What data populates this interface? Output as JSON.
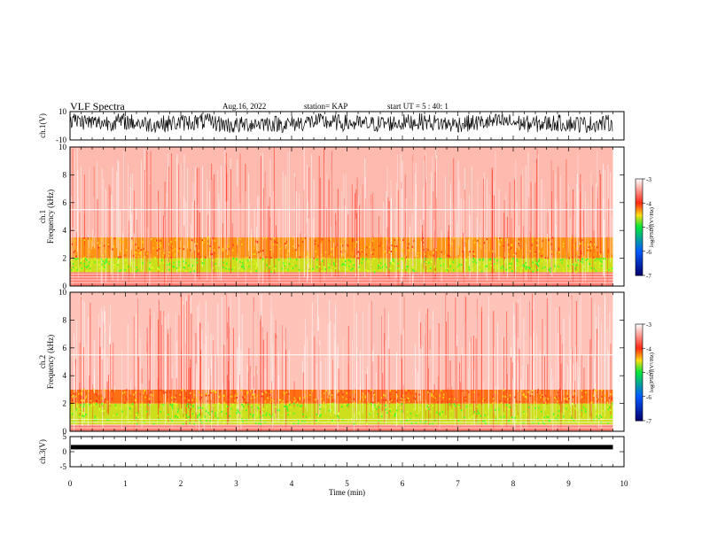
{
  "header": {
    "title": "VLF Spectra",
    "date": "Aug.16, 2022",
    "station": "station= KAP",
    "start": "start  UT  =   5 : 40: 1"
  },
  "colors": {
    "spectrum_low": "#ff3a1e",
    "spectrum_mid": "#ffd21a",
    "spectrum_high": "#3cff2a",
    "trace": "#000000"
  },
  "chart_data": [
    {
      "type": "line",
      "panel": "ch1-waveform",
      "ylabel": "ch.1(V)",
      "ylim": [
        -10,
        10
      ],
      "yticks": [
        "10",
        "-10"
      ],
      "xlim": [
        0,
        10
      ],
      "x": [
        0,
        0.5,
        1,
        1.5,
        2,
        2.5,
        3,
        3.5,
        4,
        4.5,
        5,
        5.5,
        6,
        6.5,
        7,
        7.5,
        8,
        8.5,
        9,
        9.5,
        9.8
      ],
      "y": [
        4,
        2,
        3,
        1,
        2,
        3,
        0,
        2,
        1,
        3,
        2,
        1,
        2,
        3,
        1,
        2,
        3,
        1,
        2,
        1,
        2
      ]
    },
    {
      "type": "heatmap",
      "panel": "ch1-spectrogram",
      "ylabel": "ch.1\nFrequency  (kHz)",
      "ylim": [
        0,
        10
      ],
      "yticks": [
        "0",
        "2",
        "4",
        "6",
        "8",
        "10"
      ],
      "xlim": [
        0,
        10
      ],
      "data_end_min": 9.8,
      "bands": [
        {
          "f_low": 0,
          "f_high": 1,
          "log_psd": -3.6
        },
        {
          "f_low": 1,
          "f_high": 2,
          "log_psd": -4.6
        },
        {
          "f_low": 2,
          "f_high": 3.5,
          "log_psd": -4.3
        },
        {
          "f_low": 3.5,
          "f_high": 10,
          "log_psd": -3.5
        }
      ]
    },
    {
      "type": "heatmap",
      "panel": "ch2-spectrogram",
      "ylabel": "ch.2\nFrequency  (kHz)",
      "ylim": [
        0,
        10
      ],
      "yticks": [
        "0",
        "2",
        "4",
        "6",
        "8",
        "10"
      ],
      "xlim": [
        0,
        10
      ],
      "data_end_min": 9.8,
      "bands": [
        {
          "f_low": 0,
          "f_high": 0.5,
          "log_psd": -3.6
        },
        {
          "f_low": 0.5,
          "f_high": 2,
          "log_psd": -4.6
        },
        {
          "f_low": 2,
          "f_high": 3,
          "log_psd": -4.2
        },
        {
          "f_low": 3,
          "f_high": 10,
          "log_psd": -3.4
        }
      ]
    },
    {
      "type": "line",
      "panel": "ch3-waveform",
      "ylabel": "ch.3(V)",
      "ylim": [
        -5,
        5
      ],
      "yticks": [
        "5",
        "0",
        "-5"
      ],
      "xlim": [
        0,
        10
      ],
      "x": [
        0,
        9.8
      ],
      "y": [
        1.5,
        1.5
      ]
    }
  ],
  "xaxis": {
    "label": "Time  (min)",
    "ticks": [
      "0",
      "1",
      "2",
      "3",
      "4",
      "5",
      "6",
      "7",
      "8",
      "9",
      "10"
    ]
  },
  "colorbar": {
    "label": "log(PSD)(V²/Hz)",
    "range": [
      -7,
      -3
    ],
    "ticks": [
      "-3",
      "-4",
      "-5",
      "-6",
      "-7"
    ]
  }
}
